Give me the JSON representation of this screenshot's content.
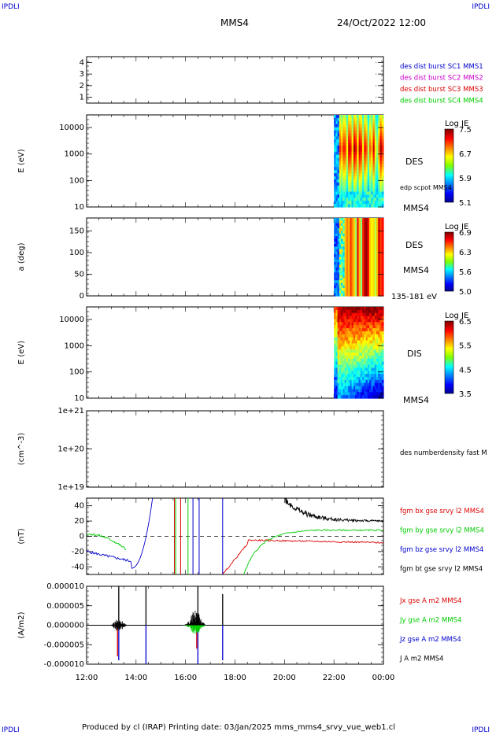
{
  "header": {
    "corner_tl": "IPDLI",
    "corner_tr": "IPDLI",
    "corner_bl": "IPDLI",
    "corner_br": "IPDLI",
    "spacecraft": "MMS4",
    "date": "24/Oct/2022 12:00"
  },
  "footer": {
    "text": "Produced by cl (IRAP)   Printing date: 03/Jan/2025   mms_mms4_srvy_vue_web1.cl"
  },
  "colors": {
    "red": "#dd0000",
    "green": "#00cc00",
    "blue": "#0000cc",
    "magenta": "#cc00cc",
    "black": "#000000"
  },
  "chart_data": [
    {
      "type": "scatter",
      "panel": "burst-availability",
      "y_ticks": [
        "4",
        "3",
        "2",
        "1"
      ],
      "ylim": [
        0.5,
        4.5
      ],
      "legend": [
        {
          "label": "des dist burst SC1 MMS1",
          "color": "#0000cc"
        },
        {
          "label": "des dist burst SC2 MMS2",
          "color": "#cc00cc"
        },
        {
          "label": "des dist burst SC3 MMS3",
          "color": "#dd0000"
        },
        {
          "label": "des dist burst SC4 MMS4",
          "color": "#00cc00"
        }
      ]
    },
    {
      "type": "heatmap",
      "panel": "des-energy",
      "ylabel": "E (eV)",
      "y_ticks": [
        "10000",
        "1000",
        "100",
        "10"
      ],
      "y_scale": "log",
      "ylim": [
        10,
        30000
      ],
      "data_start": "22:00",
      "colorbar": {
        "title": "Log JE",
        "ticks": [
          "7.5",
          "6.7",
          "5.9",
          "5.1"
        ],
        "range": [
          5.1,
          7.5
        ]
      },
      "labels": [
        "DES",
        "edp scpot MMS4",
        "MMS4"
      ]
    },
    {
      "type": "heatmap",
      "panel": "des-pitch",
      "ylabel": "a (deg)",
      "y_ticks": [
        "150",
        "100",
        "50",
        "0"
      ],
      "ylim": [
        0,
        180
      ],
      "data_start": "22:00",
      "colorbar": {
        "title": "Log JE",
        "ticks": [
          "6.9",
          "6.3",
          "5.6",
          "5.0"
        ],
        "range": [
          5.0,
          6.9
        ]
      },
      "labels": [
        "DES",
        "MMS4",
        "135-181 eV"
      ]
    },
    {
      "type": "heatmap",
      "panel": "dis-energy",
      "ylabel": "E (eV)",
      "y_ticks": [
        "10000",
        "1000",
        "100",
        "10"
      ],
      "y_scale": "log",
      "ylim": [
        10,
        30000
      ],
      "data_start": "22:00",
      "colorbar": {
        "title": "Log JE",
        "ticks": [
          "6.5",
          "5.5",
          "4.5",
          "3.5"
        ],
        "range": [
          3.5,
          6.5
        ]
      },
      "labels": [
        "DIS",
        "MMS4"
      ]
    },
    {
      "type": "line",
      "panel": "density",
      "ylabel": "(cm^-3)",
      "y_ticks": [
        "1e+21",
        "1e+20",
        "1e+19"
      ],
      "y_scale": "log",
      "legend": [
        {
          "label": "des numberdensity fast M",
          "color": "#000000"
        }
      ]
    },
    {
      "type": "line",
      "panel": "magnetic-field",
      "ylabel": "(nT)",
      "y_ticks": [
        "40",
        "20",
        "0",
        "-20",
        "-40"
      ],
      "ylim": [
        -50,
        50
      ],
      "legend": [
        {
          "label": "fgm bx gse srvy l2 MMS4",
          "color": "#dd0000"
        },
        {
          "label": "fgm by gse srvy l2 MMS4",
          "color": "#00cc00"
        },
        {
          "label": "fgm bz gse srvy l2 MMS4",
          "color": "#0000cc"
        },
        {
          "label": "fgm bt gse srvy l2 MMS4",
          "color": "#000000"
        }
      ]
    },
    {
      "type": "line",
      "panel": "current-density",
      "ylabel": "(A/m2)",
      "y_ticks": [
        "0.000010",
        "0.000005",
        "0.000000",
        "-0.000005",
        "-0.000010"
      ],
      "ylim": [
        -1e-05,
        1e-05
      ],
      "legend": [
        {
          "label": "Jx gse A m2 MMS4",
          "color": "#dd0000"
        },
        {
          "label": "Jy gse A m2 MMS4",
          "color": "#00cc00"
        },
        {
          "label": "Jz gse A m2 MMS4",
          "color": "#0000cc"
        },
        {
          "label": "J A m2 MMS4",
          "color": "#000000"
        }
      ]
    }
  ],
  "x_axis": {
    "ticks": [
      "12:00",
      "14:00",
      "16:00",
      "18:00",
      "20:00",
      "22:00",
      "00:00"
    ],
    "range_hours": [
      12,
      24
    ]
  }
}
